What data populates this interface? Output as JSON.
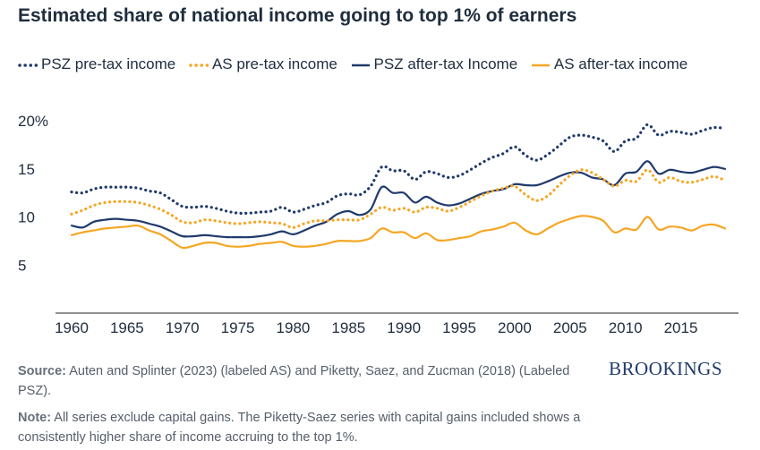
{
  "chart_data": {
    "type": "line",
    "title": "Estimated share of national income going to top 1% of earners",
    "y_unit": "%",
    "xlim": [
      1960,
      2019
    ],
    "ylim": [
      0,
      20
    ],
    "x_ticks": [
      1960,
      1965,
      1970,
      1975,
      1980,
      1985,
      1990,
      1995,
      2000,
      2005,
      2010,
      2015
    ],
    "y_ticks": [
      5,
      10,
      15,
      20
    ],
    "y_tick_labels": [
      "5",
      "10",
      "15",
      "20%"
    ],
    "grid": "y-major-baseline",
    "legend_position": "top",
    "x": [
      1960,
      1961,
      1962,
      1963,
      1964,
      1965,
      1966,
      1967,
      1968,
      1969,
      1970,
      1971,
      1972,
      1973,
      1974,
      1975,
      1976,
      1977,
      1978,
      1979,
      1980,
      1981,
      1982,
      1983,
      1984,
      1985,
      1986,
      1987,
      1988,
      1989,
      1990,
      1991,
      1992,
      1993,
      1994,
      1995,
      1996,
      1997,
      1998,
      1999,
      2000,
      2001,
      2002,
      2003,
      2004,
      2005,
      2006,
      2007,
      2008,
      2009,
      2010,
      2011,
      2012,
      2013,
      2014,
      2015,
      2016,
      2017,
      2018,
      2019
    ],
    "series": [
      {
        "name": "PSZ pre-tax income",
        "style": "dotted",
        "color": "#1f3a6b",
        "values": [
          12.6,
          12.5,
          12.9,
          13.1,
          13.1,
          13.1,
          13.0,
          12.7,
          12.5,
          11.8,
          11.1,
          11.0,
          11.1,
          10.9,
          10.6,
          10.4,
          10.4,
          10.5,
          10.6,
          11.0,
          10.5,
          10.8,
          11.2,
          11.5,
          12.2,
          12.4,
          12.3,
          13.2,
          15.2,
          14.8,
          14.8,
          13.9,
          14.7,
          14.5,
          14.1,
          14.3,
          14.9,
          15.6,
          16.2,
          16.6,
          17.3,
          16.4,
          15.9,
          16.5,
          17.4,
          18.3,
          18.5,
          18.3,
          17.9,
          16.8,
          17.9,
          18.2,
          19.6,
          18.5,
          18.9,
          18.8,
          18.6,
          19.0,
          19.3,
          19.2
        ]
      },
      {
        "name": "AS pre-tax income",
        "style": "dotted",
        "color": "#f5a623",
        "values": [
          10.3,
          10.7,
          11.2,
          11.5,
          11.6,
          11.6,
          11.5,
          11.2,
          10.8,
          10.2,
          9.5,
          9.4,
          9.7,
          9.6,
          9.4,
          9.3,
          9.4,
          9.5,
          9.4,
          9.3,
          8.9,
          9.3,
          9.6,
          9.6,
          9.7,
          9.7,
          9.7,
          10.3,
          11.0,
          10.7,
          10.9,
          10.5,
          11.0,
          10.9,
          10.6,
          11.0,
          11.6,
          12.2,
          12.7,
          13.0,
          13.2,
          12.3,
          11.7,
          12.2,
          13.3,
          14.3,
          14.9,
          14.6,
          13.9,
          13.2,
          13.8,
          13.7,
          14.9,
          13.6,
          14.1,
          13.7,
          13.6,
          13.9,
          14.2,
          13.8
        ]
      },
      {
        "name": "PSZ after-tax Income",
        "style": "solid",
        "color": "#1f3a6b",
        "values": [
          9.1,
          8.9,
          9.5,
          9.7,
          9.8,
          9.7,
          9.6,
          9.3,
          9.0,
          8.5,
          8.0,
          8.0,
          8.1,
          8.0,
          7.9,
          7.9,
          7.9,
          8.0,
          8.2,
          8.5,
          8.2,
          8.6,
          9.1,
          9.5,
          10.3,
          10.6,
          10.2,
          10.8,
          13.1,
          12.5,
          12.5,
          11.5,
          12.1,
          11.5,
          11.2,
          11.4,
          11.9,
          12.4,
          12.7,
          12.9,
          13.4,
          13.3,
          13.3,
          13.7,
          14.2,
          14.6,
          14.6,
          14.1,
          13.9,
          13.3,
          14.5,
          14.7,
          15.8,
          14.5,
          14.9,
          14.7,
          14.6,
          14.9,
          15.2,
          15.0
        ]
      },
      {
        "name": "AS after-tax income",
        "style": "solid",
        "color": "#f5a623",
        "values": [
          8.1,
          8.4,
          8.6,
          8.8,
          8.9,
          9.0,
          9.1,
          8.6,
          8.2,
          7.5,
          6.8,
          7.0,
          7.3,
          7.3,
          7.0,
          6.9,
          7.0,
          7.2,
          7.3,
          7.4,
          7.0,
          6.9,
          7.0,
          7.2,
          7.5,
          7.5,
          7.5,
          7.8,
          8.8,
          8.4,
          8.4,
          7.8,
          8.3,
          7.6,
          7.6,
          7.8,
          8.0,
          8.5,
          8.7,
          9.0,
          9.4,
          8.6,
          8.2,
          8.8,
          9.4,
          9.8,
          10.1,
          10.0,
          9.6,
          8.4,
          8.8,
          8.7,
          10.0,
          8.7,
          9.0,
          8.9,
          8.6,
          9.1,
          9.2,
          8.8
        ]
      }
    ]
  },
  "footer": {
    "source_label": "Source:",
    "source_text": " Auten and Splinter (2023) (labeled AS) and Piketty, Saez, and Zucman (2018) (Labeled PSZ).",
    "note_label": "Note:",
    "note_text": " All series exclude capital gains. The Piketty-Saez series with capital gains included shows a consistently higher share of income accruing to the top 1%."
  },
  "logo": {
    "text": "BROOKINGS"
  }
}
